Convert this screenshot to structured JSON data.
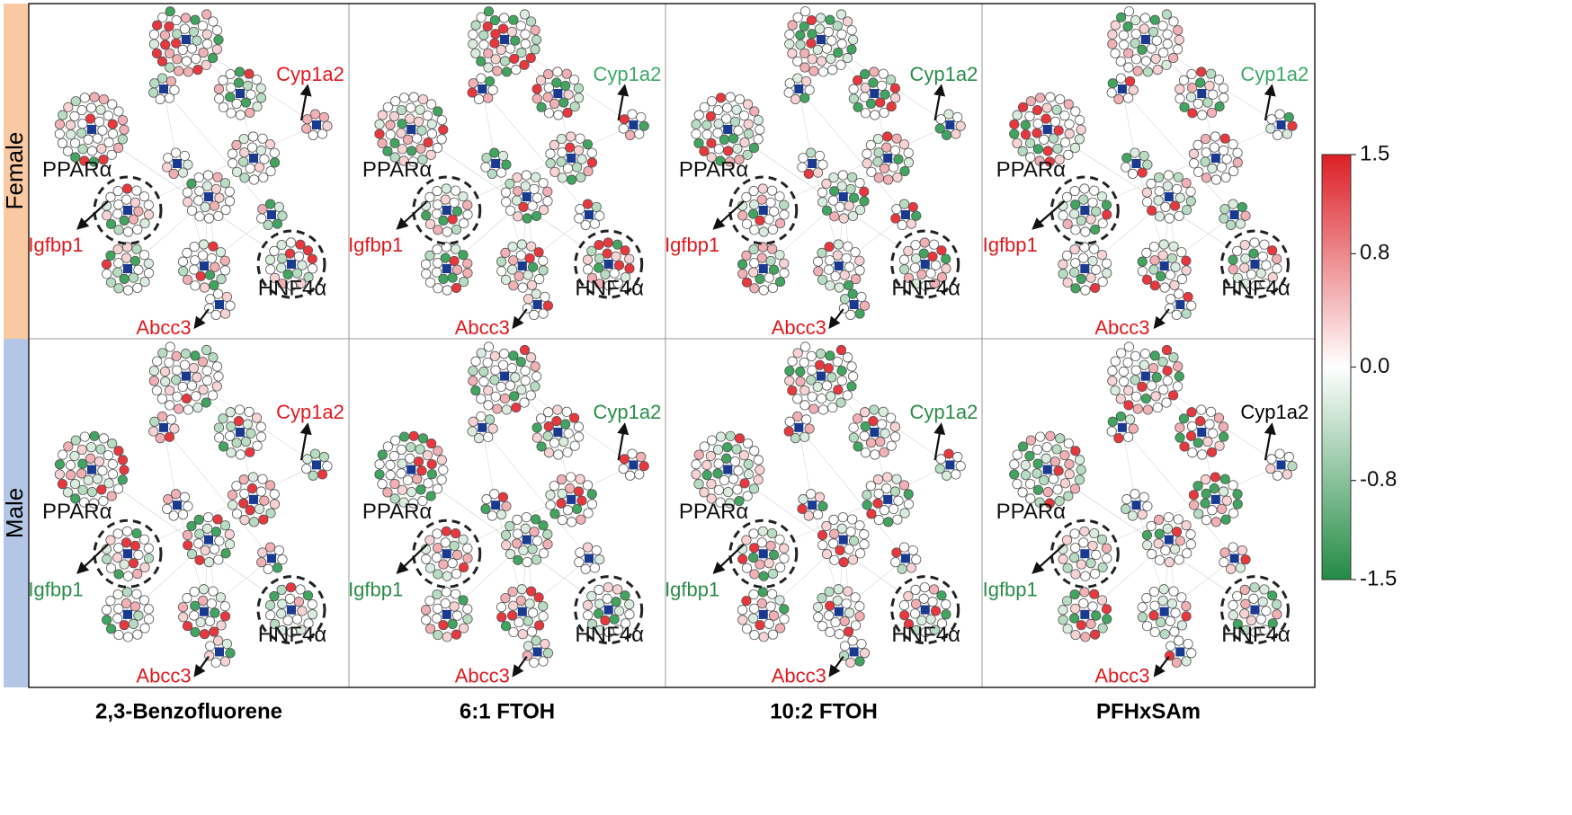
{
  "row_labels": [
    "Female",
    "Male"
  ],
  "column_labels": [
    "2,3-Benzofluorene",
    "6:1 FTOH",
    "10:2 FTOH",
    "PFHxSAm"
  ],
  "panels": [
    {
      "hubs": [
        "PPARα",
        "HNF4α"
      ],
      "genes": [
        {
          "text": "Cyp1a2",
          "color": "#e0191e"
        },
        {
          "text": "Igfbp1",
          "color": "#e0191e"
        },
        {
          "text": "Abcc3",
          "color": "#e0191e"
        }
      ]
    },
    {
      "hubs": [
        "PPARα",
        "HNF4α"
      ],
      "genes": [
        {
          "text": "Cyp1a2",
          "color": "#3aa867"
        },
        {
          "text": "Igfbp1",
          "color": "#e0191e"
        },
        {
          "text": "Abcc3",
          "color": "#e0191e"
        }
      ]
    },
    {
      "hubs": [
        "PPARα",
        "HNF4α"
      ],
      "genes": [
        {
          "text": "Cyp1a2",
          "color": "#2a8c4a"
        },
        {
          "text": "Igfbp1",
          "color": "#e0191e"
        },
        {
          "text": "Abcc3",
          "color": "#e0191e"
        }
      ]
    },
    {
      "hubs": [
        "PPARα",
        "HNF4α"
      ],
      "genes": [
        {
          "text": "Cyp1a2",
          "color": "#3aa867"
        },
        {
          "text": "Igfbp1",
          "color": "#e0191e"
        },
        {
          "text": "Abcc3",
          "color": "#e0191e"
        }
      ]
    },
    {
      "hubs": [
        "PPARα",
        "HNF4α"
      ],
      "genes": [
        {
          "text": "Cyp1a2",
          "color": "#e0191e"
        },
        {
          "text": "Igfbp1",
          "color": "#2a8c4a"
        },
        {
          "text": "Abcc3",
          "color": "#e0191e"
        }
      ]
    },
    {
      "hubs": [
        "PPARα",
        "HNF4α"
      ],
      "genes": [
        {
          "text": "Cyp1a2",
          "color": "#2a8c4a"
        },
        {
          "text": "Igfbp1",
          "color": "#2a8c4a"
        },
        {
          "text": "Abcc3",
          "color": "#e0191e"
        }
      ]
    },
    {
      "hubs": [
        "PPARα",
        "HNF4α"
      ],
      "genes": [
        {
          "text": "Cyp1a2",
          "color": "#2a8c4a"
        },
        {
          "text": "Igfbp1",
          "color": "#2a8c4a"
        },
        {
          "text": "Abcc3",
          "color": "#e0191e"
        }
      ]
    },
    {
      "hubs": [
        "PPARα",
        "HNF4α"
      ],
      "genes": [
        {
          "text": "Cyp1a2",
          "color": "#000000"
        },
        {
          "text": "Igfbp1",
          "color": "#2a8c4a"
        },
        {
          "text": "Abcc3",
          "color": "#e0191e"
        }
      ]
    }
  ],
  "colorbar": {
    "lim": [
      -1.5,
      1.5
    ],
    "ticks": [
      -1.5,
      -0.8,
      {
        "value": 0,
        "label": "0.0"
      },
      0.8,
      1.5
    ],
    "colors": [
      "#238b45",
      "#ffffff",
      "#dc1f26"
    ]
  }
}
